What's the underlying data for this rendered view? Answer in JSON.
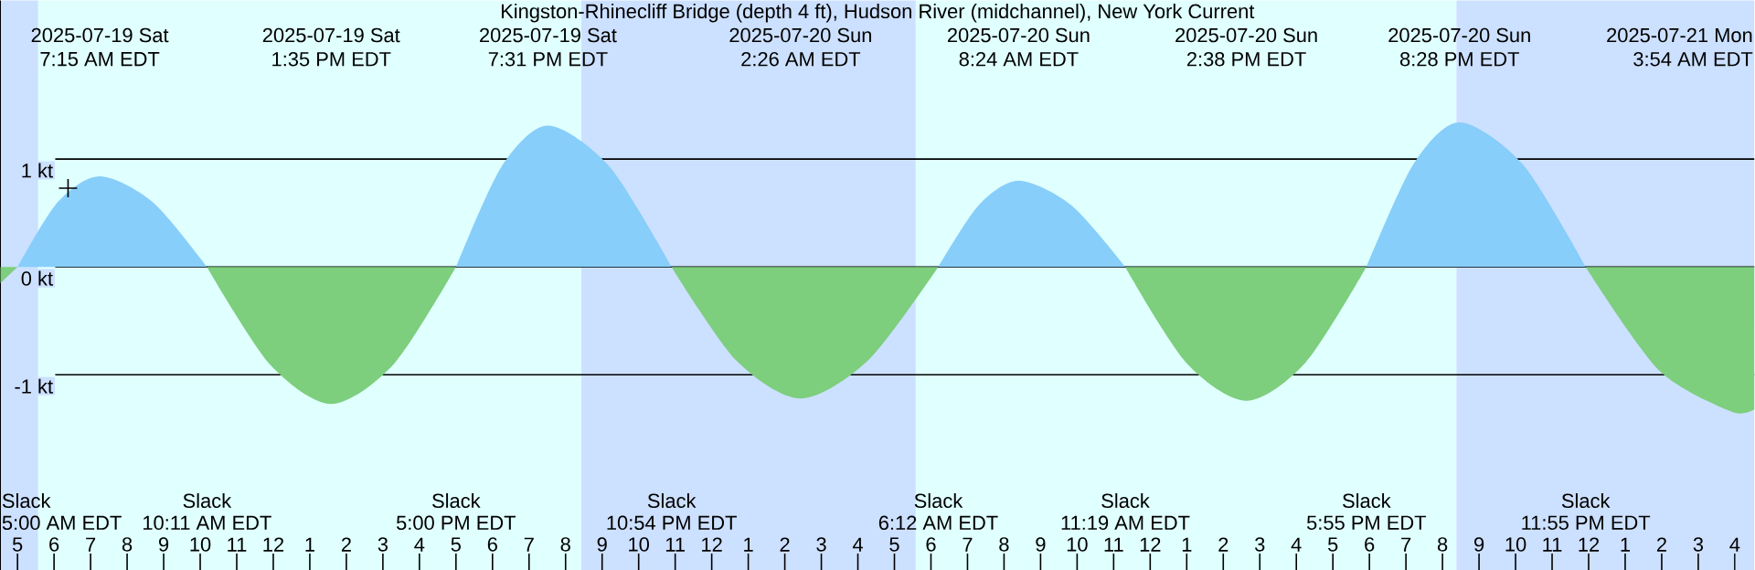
{
  "chart_data": {
    "type": "area",
    "title": "Kingston-Rhinecliff Bridge (depth 4 ft), Hudson River (midchannel), New York Current",
    "xlim": [
      "2025-07-19T04:32",
      "2025-07-21T04:32"
    ],
    "ylim": [
      -2.81,
      2.47
    ],
    "yticks": [
      {
        "value": 1,
        "label": "1 kt"
      },
      {
        "value": 0,
        "label": "0 kt"
      },
      {
        "value": -1,
        "label": "-1 kt"
      }
    ],
    "xticks": [
      {
        "value": "2025-07-19T05:00",
        "label": "5"
      },
      {
        "value": "2025-07-19T06:00",
        "label": "6"
      },
      {
        "value": "2025-07-19T07:00",
        "label": "7"
      },
      {
        "value": "2025-07-19T08:00",
        "label": "8"
      },
      {
        "value": "2025-07-19T09:00",
        "label": "9"
      },
      {
        "value": "2025-07-19T10:00",
        "label": "10"
      },
      {
        "value": "2025-07-19T11:00",
        "label": "11"
      },
      {
        "value": "2025-07-19T12:00",
        "label": "12"
      },
      {
        "value": "2025-07-19T13:00",
        "label": "1"
      },
      {
        "value": "2025-07-19T14:00",
        "label": "2"
      },
      {
        "value": "2025-07-19T15:00",
        "label": "3"
      },
      {
        "value": "2025-07-19T16:00",
        "label": "4"
      },
      {
        "value": "2025-07-19T17:00",
        "label": "5"
      },
      {
        "value": "2025-07-19T18:00",
        "label": "6"
      },
      {
        "value": "2025-07-19T19:00",
        "label": "7"
      },
      {
        "value": "2025-07-19T20:00",
        "label": "8"
      },
      {
        "value": "2025-07-19T21:00",
        "label": "9"
      },
      {
        "value": "2025-07-19T22:00",
        "label": "10"
      },
      {
        "value": "2025-07-19T23:00",
        "label": "11"
      },
      {
        "value": "2025-07-20T00:00",
        "label": "12"
      },
      {
        "value": "2025-07-20T01:00",
        "label": "1"
      },
      {
        "value": "2025-07-20T02:00",
        "label": "2"
      },
      {
        "value": "2025-07-20T03:00",
        "label": "3"
      },
      {
        "value": "2025-07-20T04:00",
        "label": "4"
      },
      {
        "value": "2025-07-20T05:00",
        "label": "5"
      },
      {
        "value": "2025-07-20T06:00",
        "label": "6"
      },
      {
        "value": "2025-07-20T07:00",
        "label": "7"
      },
      {
        "value": "2025-07-20T08:00",
        "label": "8"
      },
      {
        "value": "2025-07-20T09:00",
        "label": "9"
      },
      {
        "value": "2025-07-20T10:00",
        "label": "10"
      },
      {
        "value": "2025-07-20T11:00",
        "label": "11"
      },
      {
        "value": "2025-07-20T12:00",
        "label": "12"
      },
      {
        "value": "2025-07-20T13:00",
        "label": "1"
      },
      {
        "value": "2025-07-20T14:00",
        "label": "2"
      },
      {
        "value": "2025-07-20T15:00",
        "label": "3"
      },
      {
        "value": "2025-07-20T16:00",
        "label": "4"
      },
      {
        "value": "2025-07-20T17:00",
        "label": "5"
      },
      {
        "value": "2025-07-20T18:00",
        "label": "6"
      },
      {
        "value": "2025-07-20T19:00",
        "label": "7"
      },
      {
        "value": "2025-07-20T20:00",
        "label": "8"
      },
      {
        "value": "2025-07-20T21:00",
        "label": "9"
      },
      {
        "value": "2025-07-20T22:00",
        "label": "10"
      },
      {
        "value": "2025-07-20T23:00",
        "label": "11"
      },
      {
        "value": "2025-07-21T00:00",
        "label": "12"
      },
      {
        "value": "2025-07-21T01:00",
        "label": "1"
      },
      {
        "value": "2025-07-21T02:00",
        "label": "2"
      },
      {
        "value": "2025-07-21T03:00",
        "label": "3"
      },
      {
        "value": "2025-07-21T04:00",
        "label": "4"
      }
    ],
    "grid": "y",
    "bands": [
      {
        "axis": "x",
        "from": "2025-07-19T04:32",
        "to": "2025-07-19T05:34",
        "color": "#cce0ff"
      },
      {
        "axis": "x",
        "from": "2025-07-19T05:34",
        "to": "2025-07-19T20:26",
        "color": "#e0ffff"
      },
      {
        "axis": "x",
        "from": "2025-07-19T20:26",
        "to": "2025-07-20T05:35",
        "color": "#cce0ff"
      },
      {
        "axis": "x",
        "from": "2025-07-20T05:35",
        "to": "2025-07-20T20:23",
        "color": "#e0ffff"
      },
      {
        "axis": "x",
        "from": "2025-07-20T20:23",
        "to": "2025-07-21T04:32",
        "color": "#cce0ff"
      }
    ],
    "series": [
      {
        "color": "#7dce7d",
        "x": [
          "2025-07-19T04:32",
          "2025-07-19T05:00"
        ],
        "values": [
          -0.15,
          0
        ]
      },
      {
        "color": "#87cefa",
        "x": [
          "2025-07-19T05:00",
          "2025-07-19T06:06",
          "2025-07-19T07:15",
          "2025-07-19T08:42",
          "2025-07-19T10:11"
        ],
        "values": [
          0,
          0.6,
          0.84,
          0.6,
          0
        ]
      },
      {
        "color": "#7dce7d",
        "x": [
          "2025-07-19T10:11",
          "2025-07-19T11:54",
          "2025-07-19T13:35",
          "2025-07-19T15:18",
          "2025-07-19T17:00"
        ],
        "values": [
          0,
          -0.9,
          -1.27,
          -0.9,
          0
        ]
      },
      {
        "color": "#87cefa",
        "x": [
          "2025-07-19T17:00",
          "2025-07-19T18:15",
          "2025-07-19T19:31",
          "2025-07-19T21:12",
          "2025-07-19T22:54"
        ],
        "values": [
          0,
          0.93,
          1.31,
          0.93,
          0
        ]
      },
      {
        "color": "#7dce7d",
        "x": [
          "2025-07-19T22:54",
          "2025-07-20T00:39",
          "2025-07-20T02:26",
          "2025-07-20T04:18",
          "2025-07-20T06:12"
        ],
        "values": [
          0,
          -0.86,
          -1.22,
          -0.86,
          0
        ]
      },
      {
        "color": "#87cefa",
        "x": [
          "2025-07-20T06:12",
          "2025-07-20T07:18",
          "2025-07-20T08:24",
          "2025-07-20T09:51",
          "2025-07-20T11:19"
        ],
        "values": [
          0,
          0.57,
          0.8,
          0.57,
          0
        ]
      },
      {
        "color": "#7dce7d",
        "x": [
          "2025-07-20T11:19",
          "2025-07-20T12:58",
          "2025-07-20T14:38",
          "2025-07-20T16:16",
          "2025-07-20T17:55"
        ],
        "values": [
          0,
          -0.88,
          -1.24,
          -0.88,
          0
        ]
      },
      {
        "color": "#87cefa",
        "x": [
          "2025-07-20T17:55",
          "2025-07-20T19:12",
          "2025-07-20T20:28",
          "2025-07-20T22:12",
          "2025-07-20T23:55"
        ],
        "values": [
          0,
          0.95,
          1.34,
          0.95,
          0
        ]
      },
      {
        "color": "#7dce7d",
        "x": [
          "2025-07-20T23:55",
          "2025-07-21T01:54",
          "2025-07-21T03:54",
          "2025-07-21T04:32"
        ],
        "values": [
          0,
          -0.95,
          -1.34,
          -1.32
        ]
      },
      {
        "type": "scatter",
        "color": "#000000",
        "marker": "cross",
        "x": [
          "2025-07-19T06:23"
        ],
        "values": [
          0.73
        ]
      }
    ],
    "annotations": [
      "2025-07-19 Sat",
      "7:15 AM EDT",
      "2025-07-19 Sat",
      "1:35 PM EDT",
      "2025-07-19 Sat",
      "7:31 PM EDT",
      "2025-07-20 Sun",
      "2:26 AM EDT",
      "2025-07-20 Sun",
      "8:24 AM EDT",
      "2025-07-20 Sun",
      "2:38 PM EDT",
      "2025-07-20 Sun",
      "8:28 PM EDT",
      "2025-07-21 Mon",
      "3:54 AM EDT",
      "Slack",
      "5:00 AM EDT",
      "Slack",
      "10:11 AM EDT",
      "Slack",
      "5:00 PM EDT",
      "Slack",
      "10:54 PM EDT",
      "Slack",
      "6:12 AM EDT",
      "Slack",
      "11:19 AM EDT",
      "Slack",
      "5:55 PM EDT",
      "Slack",
      "11:55 PM EDT"
    ]
  }
}
